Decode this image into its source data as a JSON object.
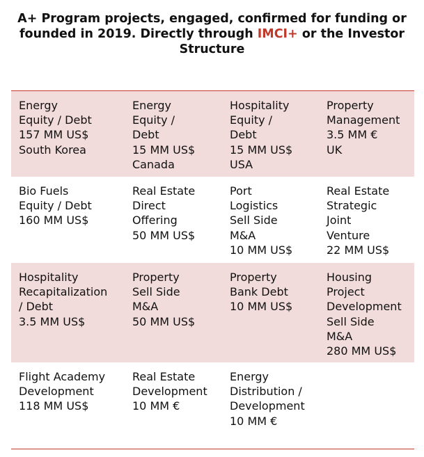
{
  "heading": {
    "part1": "A+ Program projects, engaged, confirmed for funding or founded in 2019. Directly through ",
    "highlight": "IMCI+",
    "part2": " or the Investor Structure"
  },
  "colors": {
    "accent": "#c0392b",
    "shade": "#f2dcdb"
  },
  "rows": [
    [
      [
        "Energy",
        "Equity / Debt",
        "157 MM US$",
        "South Korea"
      ],
      [
        "Energy",
        "Equity /",
        "Debt",
        "15 MM US$",
        "Canada"
      ],
      [
        "Hospitality",
        "Equity /",
        "Debt",
        "15 MM US$",
        "USA"
      ],
      [
        "Property",
        "Management",
        "3.5 MM €",
        "UK"
      ]
    ],
    [
      [
        "Bio Fuels",
        "Equity / Debt",
        "160 MM US$"
      ],
      [
        "Real Estate",
        "Direct",
        "Offering",
        "50 MM US$"
      ],
      [
        "Port",
        "Logistics",
        "Sell Side",
        "M&A",
        "10 MM US$"
      ],
      [
        "Real Estate",
        "Strategic",
        "Joint",
        "Venture",
        "22 MM US$"
      ]
    ],
    [
      [
        "Hospitality",
        "Recapitalization",
        "/ Debt",
        "3.5 MM US$"
      ],
      [
        "Property",
        "Sell Side",
        "M&A",
        "50 MM US$"
      ],
      [
        "Property",
        "Bank Debt",
        "10 MM US$"
      ],
      [
        "Housing",
        "Project",
        "Development",
        "Sell Side",
        "M&A",
        "280 MM US$"
      ]
    ],
    [
      [
        "Flight Academy",
        "Development",
        "118 MM US$"
      ],
      [
        "Real Estate",
        "Development",
        "10 MM €"
      ],
      [
        "Energy",
        "Distribution /",
        "Development",
        "10 MM €"
      ],
      []
    ]
  ]
}
